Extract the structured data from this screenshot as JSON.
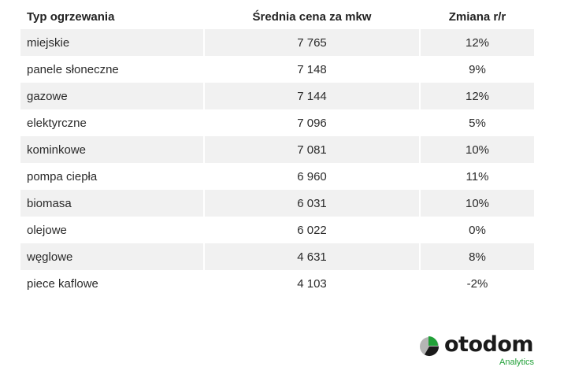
{
  "table": {
    "headers": {
      "type": "Typ ogrzewania",
      "price": "Średnia cena za mkw",
      "change": "Zmiana r/r"
    },
    "rows": [
      {
        "type": "miejskie",
        "price": "7 765",
        "change": "12%"
      },
      {
        "type": "panele słoneczne",
        "price": "7 148",
        "change": "9%"
      },
      {
        "type": "gazowe",
        "price": "7 144",
        "change": "12%"
      },
      {
        "type": "elektyrczne",
        "price": "7 096",
        "change": "5%"
      },
      {
        "type": "kominkowe",
        "price": "7 081",
        "change": "10%"
      },
      {
        "type": "pompa ciepła",
        "price": "6 960",
        "change": "11%"
      },
      {
        "type": "biomasa",
        "price": "6 031",
        "change": "10%"
      },
      {
        "type": "olejowe",
        "price": "6 022",
        "change": "0%"
      },
      {
        "type": "węglowe",
        "price": "4 631",
        "change": "8%"
      },
      {
        "type": "piece kaflowe",
        "price": "4 103",
        "change": "-2%"
      }
    ]
  },
  "logo": {
    "wordmark": "otodom",
    "subtitle": "Analytics",
    "colors": {
      "dark": "#1a1a1a",
      "grey": "#b5b5b5",
      "green": "#21a038"
    }
  }
}
